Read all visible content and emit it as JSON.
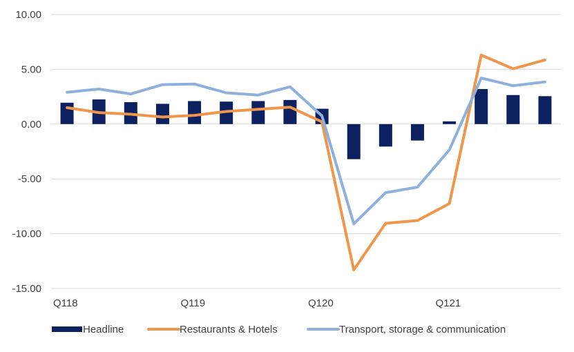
{
  "chart_data": {
    "type": "bar+line",
    "title": "",
    "xlabel": "",
    "ylabel": "",
    "ylim": [
      -15,
      10
    ],
    "y_ticks": [
      "10.00",
      "5.00",
      "0.00",
      "-5.00",
      "-10.00",
      "-15.00"
    ],
    "y_tick_values": [
      10,
      5,
      0,
      -5,
      -10,
      -15
    ],
    "categories": [
      "Q118",
      "",
      "",
      "",
      "Q119",
      "",
      "",
      "",
      "Q120",
      "",
      "",
      "",
      "Q121",
      "",
      "",
      ""
    ],
    "grid": "horizontal",
    "legend_position": "bottom",
    "series": [
      {
        "name": "Headline",
        "type": "bar",
        "color": "#0d2060",
        "values": [
          1.95,
          2.25,
          2.0,
          1.85,
          2.1,
          2.05,
          2.1,
          2.2,
          1.4,
          -3.2,
          -2.05,
          -1.5,
          0.25,
          3.2,
          2.65,
          2.55
        ]
      },
      {
        "name": "Restaurants & Hotels",
        "type": "line",
        "color": "#f0964a",
        "values": [
          1.5,
          1.05,
          0.9,
          0.65,
          0.8,
          1.15,
          1.35,
          1.55,
          0.2,
          -13.3,
          -9.05,
          -8.8,
          -7.25,
          6.3,
          5.05,
          5.85
        ]
      },
      {
        "name": "Transport, storage & communication",
        "type": "line",
        "color": "#8fb0dd",
        "values": [
          2.9,
          3.2,
          2.75,
          3.6,
          3.65,
          2.85,
          2.65,
          3.4,
          0.75,
          -9.1,
          -6.25,
          -5.75,
          -2.35,
          4.2,
          3.5,
          3.85
        ]
      }
    ]
  }
}
